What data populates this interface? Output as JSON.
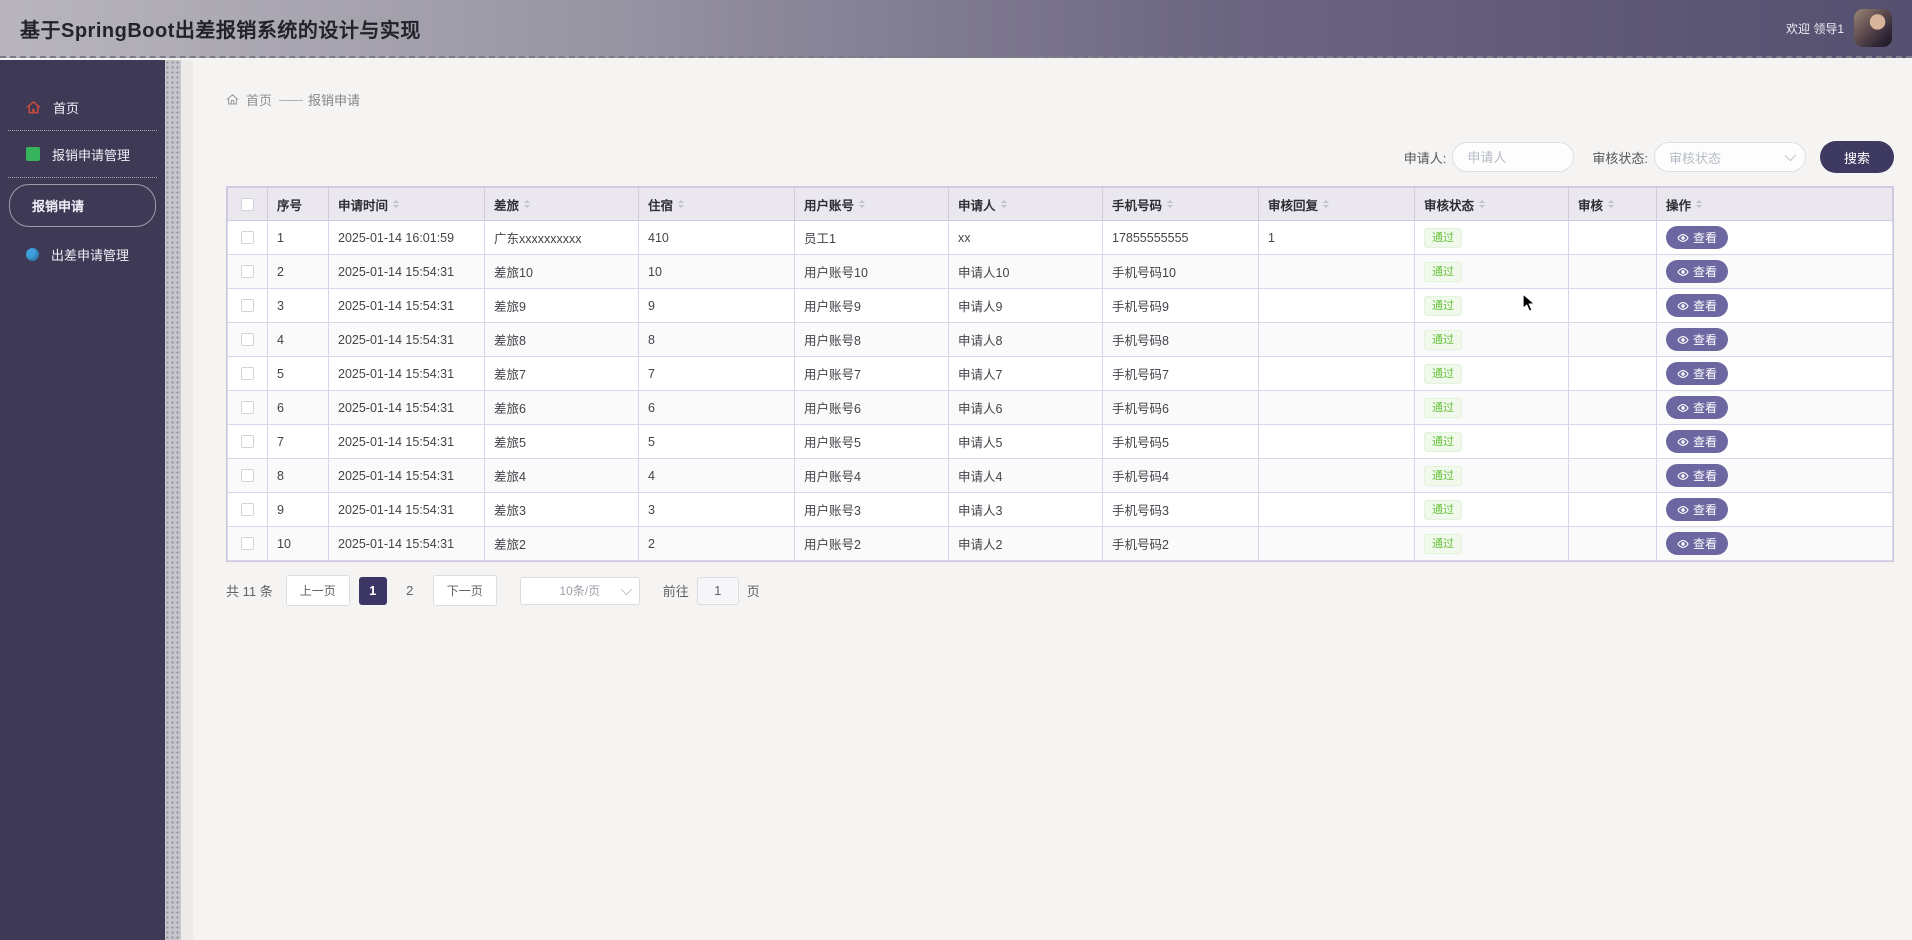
{
  "header": {
    "title": "基于SpringBoot出差报销系统的设计与实现",
    "welcome": "欢迎 领导1"
  },
  "sidebar": {
    "items": [
      {
        "label": "首页",
        "icon": "home-icon"
      },
      {
        "label": "报销申请管理",
        "icon": "green-square-icon"
      },
      {
        "label": "报销申请",
        "icon": "none",
        "active": true
      },
      {
        "label": "出差申请管理",
        "icon": "blue-circle-icon"
      }
    ]
  },
  "breadcrumb": {
    "home": "首页",
    "separator": "——",
    "current": "报销申请"
  },
  "filters": {
    "applicant_label": "申请人:",
    "applicant_placeholder": "申请人",
    "status_label": "审核状态:",
    "status_placeholder": "审核状态",
    "search_label": "搜索"
  },
  "table": {
    "columns": [
      "序号",
      "申请时间",
      "差旅",
      "住宿",
      "用户账号",
      "申请人",
      "手机号码",
      "审核回复",
      "审核状态",
      "审核",
      "操作"
    ],
    "rows": [
      {
        "seq": "1",
        "time": "2025-01-14 16:01:59",
        "trip": "广东xxxxxxxxxx",
        "hotel": "410",
        "account": "员工1",
        "applicant": "xx",
        "phone": "17855555555",
        "reply": "1",
        "status": "通过",
        "action": "查看"
      },
      {
        "seq": "2",
        "time": "2025-01-14 15:54:31",
        "trip": "差旅10",
        "hotel": "10",
        "account": "用户账号10",
        "applicant": "申请人10",
        "phone": "手机号码10",
        "reply": "",
        "status": "通过",
        "action": "查看"
      },
      {
        "seq": "3",
        "time": "2025-01-14 15:54:31",
        "trip": "差旅9",
        "hotel": "9",
        "account": "用户账号9",
        "applicant": "申请人9",
        "phone": "手机号码9",
        "reply": "",
        "status": "通过",
        "action": "查看"
      },
      {
        "seq": "4",
        "time": "2025-01-14 15:54:31",
        "trip": "差旅8",
        "hotel": "8",
        "account": "用户账号8",
        "applicant": "申请人8",
        "phone": "手机号码8",
        "reply": "",
        "status": "通过",
        "action": "查看"
      },
      {
        "seq": "5",
        "time": "2025-01-14 15:54:31",
        "trip": "差旅7",
        "hotel": "7",
        "account": "用户账号7",
        "applicant": "申请人7",
        "phone": "手机号码7",
        "reply": "",
        "status": "通过",
        "action": "查看"
      },
      {
        "seq": "6",
        "time": "2025-01-14 15:54:31",
        "trip": "差旅6",
        "hotel": "6",
        "account": "用户账号6",
        "applicant": "申请人6",
        "phone": "手机号码6",
        "reply": "",
        "status": "通过",
        "action": "查看"
      },
      {
        "seq": "7",
        "time": "2025-01-14 15:54:31",
        "trip": "差旅5",
        "hotel": "5",
        "account": "用户账号5",
        "applicant": "申请人5",
        "phone": "手机号码5",
        "reply": "",
        "status": "通过",
        "action": "查看"
      },
      {
        "seq": "8",
        "time": "2025-01-14 15:54:31",
        "trip": "差旅4",
        "hotel": "4",
        "account": "用户账号4",
        "applicant": "申请人4",
        "phone": "手机号码4",
        "reply": "",
        "status": "通过",
        "action": "查看"
      },
      {
        "seq": "9",
        "time": "2025-01-14 15:54:31",
        "trip": "差旅3",
        "hotel": "3",
        "account": "用户账号3",
        "applicant": "申请人3",
        "phone": "手机号码3",
        "reply": "",
        "status": "通过",
        "action": "查看"
      },
      {
        "seq": "10",
        "time": "2025-01-14 15:54:31",
        "trip": "差旅2",
        "hotel": "2",
        "account": "用户账号2",
        "applicant": "申请人2",
        "phone": "手机号码2",
        "reply": "",
        "status": "通过",
        "action": "查看"
      }
    ]
  },
  "pagination": {
    "total": "共 11 条",
    "prev": "上一页",
    "pages": [
      "1",
      "2"
    ],
    "active_page": "1",
    "next": "下一页",
    "page_size": "10条/页",
    "goto_label": "前往",
    "goto_value": "1",
    "goto_suffix": "页"
  },
  "icons": {
    "home": "house-outline",
    "breadcrumb_home": "house-outline",
    "sort": "caret-up-down",
    "chevron": "angle-down",
    "view": "eye"
  },
  "colors": {
    "header_gradient_left": "#b8b5bd",
    "header_gradient_right": "#565070",
    "sidebar_bg": "#3e3955",
    "accent_button": "#3e3960",
    "pager_active": "#3c3664",
    "view_button": "#6d67a1",
    "status_pass_text": "#67c23a",
    "status_pass_bg": "#f0f9eb",
    "green_icon": "#35b45b",
    "blue_icon": "#3f9fdc",
    "home_icon": "#c64a40"
  }
}
